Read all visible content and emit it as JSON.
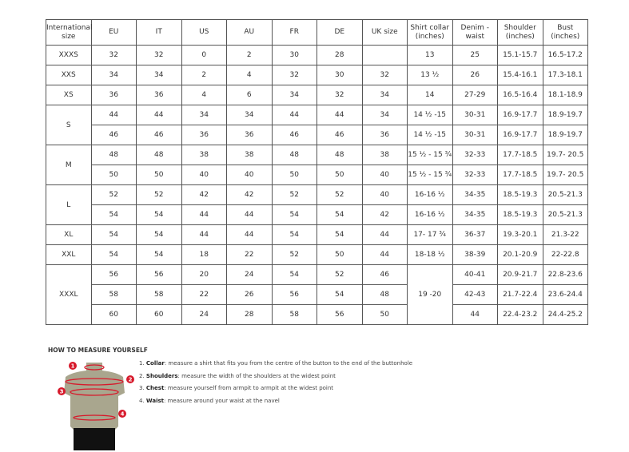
{
  "headers": [
    "International size",
    "EU",
    "IT",
    "US",
    "AU",
    "FR",
    "DE",
    "UK size",
    "Shirt collar (inches)",
    "Denim - waist",
    "Shoulder (inches)",
    "Bust (inches)"
  ],
  "groups": [
    {
      "size": "XXXS",
      "rows": [
        [
          "32",
          "32",
          "0",
          "2",
          "30",
          "28",
          "",
          "13",
          "25",
          "15.1-15.7",
          "16.5-17.2"
        ]
      ]
    },
    {
      "size": "XXS",
      "rows": [
        [
          "34",
          "34",
          "2",
          "4",
          "32",
          "30",
          "32",
          "13 ½",
          "26",
          "15.4-16.1",
          "17.3-18.1"
        ]
      ]
    },
    {
      "size": "XS",
      "rows": [
        [
          "36",
          "36",
          "4",
          "6",
          "34",
          "32",
          "34",
          "14",
          "27-29",
          "16.5-16.4",
          "18.1-18.9"
        ]
      ]
    },
    {
      "size": "S",
      "rows": [
        [
          "44",
          "44",
          "34",
          "34",
          "44",
          "44",
          "34",
          "14 ½ -15",
          "30-31",
          "16.9-17.7",
          "18.9-19.7"
        ],
        [
          "46",
          "46",
          "36",
          "36",
          "46",
          "46",
          "36",
          "14 ½ -15",
          "30-31",
          "16.9-17.7",
          "18.9-19.7"
        ]
      ]
    },
    {
      "size": "M",
      "rows": [
        [
          "48",
          "48",
          "38",
          "38",
          "48",
          "48",
          "38",
          "15 ½ - 15 ¾",
          "32-33",
          "17.7-18.5",
          "19.7- 20.5"
        ],
        [
          "50",
          "50",
          "40",
          "40",
          "50",
          "50",
          "40",
          "15 ½ - 15 ¾",
          "32-33",
          "17.7-18.5",
          "19.7- 20.5"
        ]
      ]
    },
    {
      "size": "L",
      "rows": [
        [
          "52",
          "52",
          "42",
          "42",
          "52",
          "52",
          "40",
          "16-16 ½",
          "34-35",
          "18.5-19.3",
          "20.5-21.3"
        ],
        [
          "54",
          "54",
          "44",
          "44",
          "54",
          "54",
          "42",
          "16-16 ½",
          "34-35",
          "18.5-19.3",
          "20.5-21.3"
        ]
      ]
    },
    {
      "size": "XL",
      "rows": [
        [
          "54",
          "54",
          "44",
          "44",
          "54",
          "54",
          "44",
          "17- 17 ¾",
          "36-37",
          "19.3-20.1",
          "21.3-22"
        ]
      ]
    },
    {
      "size": "XXL",
      "rows": [
        [
          "54",
          "54",
          "18",
          "22",
          "52",
          "50",
          "44",
          "18-18 ½",
          "38-39",
          "20.1-20.9",
          "22-22.8"
        ]
      ]
    },
    {
      "size": "XXXL",
      "collar": "19 -20",
      "rows": [
        [
          "56",
          "56",
          "20",
          "24",
          "54",
          "52",
          "46",
          null,
          "40-41",
          "20.9-21.7",
          "22.8-23.6"
        ],
        [
          "58",
          "58",
          "22",
          "26",
          "56",
          "54",
          "48",
          null,
          "42-43",
          "21.7-22.4",
          "23.6-24.4"
        ],
        [
          "60",
          "60",
          "24",
          "28",
          "58",
          "56",
          "50",
          null,
          "44",
          "22.4-23.2",
          "24.4-25.2"
        ]
      ]
    }
  ],
  "howto": {
    "title": "HOW TO MEASURE YOURSELF",
    "steps": [
      {
        "num": "1.",
        "term": "Collar",
        "text": ": measure a shirt that fits you from the centre of the button to the end of the buttonhole"
      },
      {
        "num": "2.",
        "term": "Shoulders",
        "text": ": measure the width of the shoulders at the widest point"
      },
      {
        "num": "3.",
        "term": "Chest",
        "text": ": measure yourself from armpit to armpit at the widest point"
      },
      {
        "num": "4.",
        "term": "Waist",
        "text": ": measure around your waist at the navel"
      }
    ],
    "markers": [
      "1",
      "2",
      "3",
      "4"
    ]
  },
  "colors": {
    "marker": "#d7192b",
    "torso": "#a9a68e",
    "shorts": "#111111"
  }
}
